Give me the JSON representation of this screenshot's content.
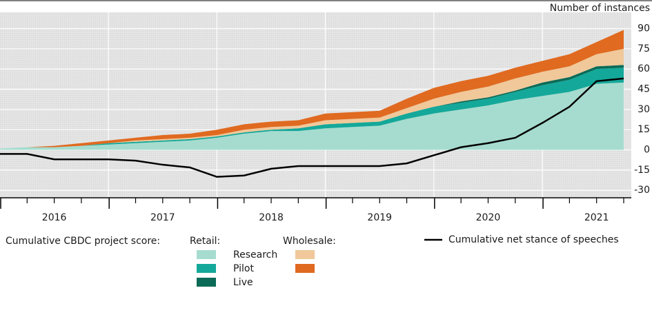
{
  "chart_data": {
    "type": "stacked-area-line",
    "y_axis_label": "Number of instances",
    "x": [
      2016.0,
      2016.25,
      2016.5,
      2016.75,
      2017.0,
      2017.25,
      2017.5,
      2017.75,
      2018.0,
      2018.25,
      2018.5,
      2018.75,
      2019.0,
      2019.25,
      2019.5,
      2019.75,
      2020.0,
      2020.25,
      2020.5,
      2020.75,
      2021.0,
      2021.25,
      2021.5,
      2021.75
    ],
    "xlim": [
      2016,
      2021.82
    ],
    "xticks": [
      {
        "value": 2016.5,
        "label": "2016"
      },
      {
        "value": 2017.5,
        "label": "2017"
      },
      {
        "value": 2018.5,
        "label": "2018"
      },
      {
        "value": 2019.5,
        "label": "2019"
      },
      {
        "value": 2020.5,
        "label": "2020"
      },
      {
        "value": 2021.5,
        "label": "2021"
      }
    ],
    "xgrid": [
      2016,
      2017,
      2018,
      2019,
      2020,
      2021
    ],
    "xminorticks": [
      2016.25,
      2016.5,
      2016.75,
      2017.25,
      2017.5,
      2017.75,
      2018.25,
      2018.5,
      2018.75,
      2019.25,
      2019.5,
      2019.75,
      2020.25,
      2020.5,
      2020.75,
      2021.25,
      2021.5,
      2021.75
    ],
    "ylim": [
      -35,
      102
    ],
    "yticks": [
      90,
      75,
      60,
      45,
      30,
      15,
      0,
      -15,
      -30
    ],
    "grid": true,
    "legend": {
      "label": "Cumulative CBDC project score:",
      "groups": [
        "Retail:",
        "Wholesale:"
      ],
      "rows": [
        "Research",
        "Pilot",
        "Live"
      ]
    },
    "series": [
      {
        "group": 0,
        "row": 0,
        "color": "#a6dccf",
        "values": [
          1,
          2,
          2,
          3,
          4,
          5,
          6,
          7,
          9,
          12,
          14,
          14,
          16,
          17,
          18,
          23,
          27,
          30,
          33,
          37,
          40,
          43,
          49,
          50
        ]
      },
      {
        "group": 0,
        "row": 1,
        "color": "#14a89a",
        "values": [
          0,
          0,
          0,
          0,
          1,
          1,
          1,
          1,
          1,
          1,
          1,
          2,
          3,
          3,
          3,
          4,
          5,
          5,
          5,
          6,
          8,
          9,
          11,
          11
        ]
      },
      {
        "group": 0,
        "row": 2,
        "color": "#0b6b57",
        "values": [
          0,
          0,
          0,
          0,
          0,
          0,
          0,
          0,
          0,
          0,
          0,
          0,
          0,
          0,
          0,
          0,
          0,
          1,
          1,
          1,
          2,
          2,
          2,
          2
        ]
      },
      {
        "group": 1,
        "row": 0,
        "color": "#f0c89a",
        "values": [
          0,
          0,
          0,
          0,
          0,
          1,
          1,
          1,
          1,
          2,
          2,
          2,
          3,
          3,
          3,
          4,
          6,
          7,
          8,
          9,
          8,
          8,
          9,
          12
        ]
      },
      {
        "group": 1,
        "row": 1,
        "color": "#e06a20",
        "values": [
          0,
          0,
          1,
          2,
          2,
          2,
          3,
          3,
          4,
          4,
          4,
          4,
          5,
          5,
          5,
          7,
          8,
          8,
          8,
          8,
          8,
          9,
          9,
          14
        ]
      }
    ],
    "line": {
      "name": "Cumulative net stance of speeches",
      "color": "#000000",
      "values": [
        -3,
        -3,
        -7,
        -7,
        -7,
        -8,
        -11,
        -13,
        -20,
        -19,
        -14,
        -12,
        -12,
        -12,
        -12,
        -10,
        -4,
        2,
        5,
        9,
        20,
        32,
        51,
        53
      ]
    }
  }
}
